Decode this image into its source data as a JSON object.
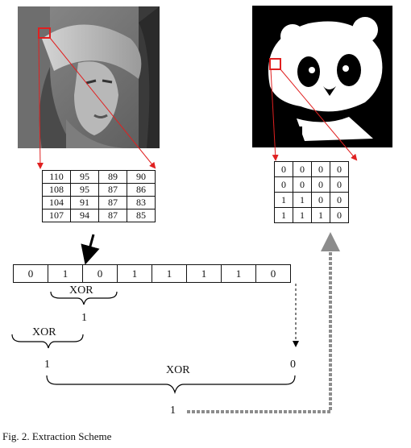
{
  "pixel_block": [
    [
      "110",
      "95",
      "89",
      "90"
    ],
    [
      "108",
      "95",
      "87",
      "86"
    ],
    [
      "104",
      "91",
      "87",
      "83"
    ],
    [
      "107",
      "94",
      "87",
      "85"
    ]
  ],
  "watermark_block": [
    [
      "0",
      "0",
      "0",
      "0"
    ],
    [
      "0",
      "0",
      "0",
      "0"
    ],
    [
      "1",
      "1",
      "0",
      "0"
    ],
    [
      "1",
      "1",
      "1",
      "0"
    ]
  ],
  "bit_sequence": [
    "0",
    "1",
    "0",
    "1",
    "1",
    "1",
    "1",
    "0"
  ],
  "labels": {
    "xor_top": "XOR",
    "xor_left": "XOR",
    "xor_bottom": "XOR",
    "result_top": "1",
    "result_left": "1",
    "last_bit": "0",
    "final_result": "1"
  },
  "caption": "Fig. 2.   Extraction Scheme",
  "colors": {
    "highlight": "#e02020",
    "dashed_arrow": "#8c8c8c",
    "text": "#111111"
  },
  "images": {
    "left": "grayscale-portrait-image",
    "right": "binary-panda-image"
  }
}
